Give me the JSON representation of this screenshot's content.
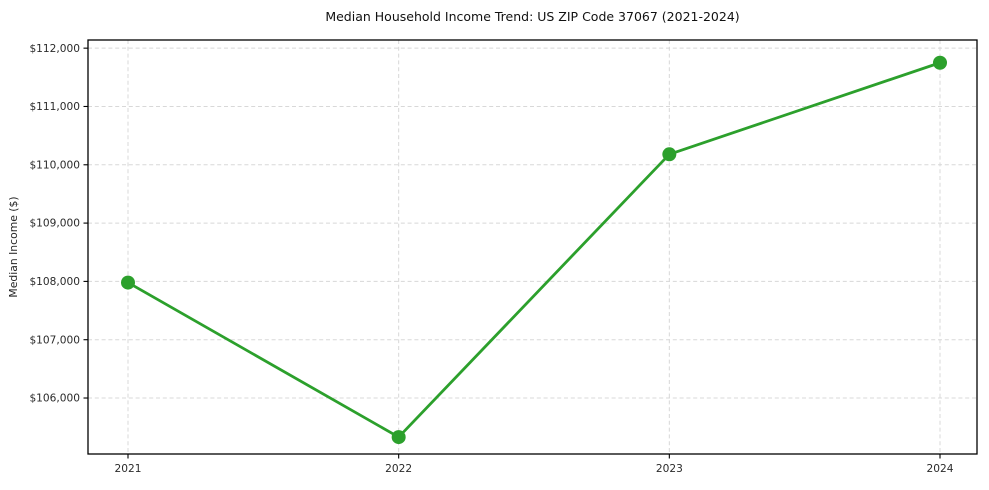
{
  "chart_data": {
    "type": "line",
    "title": "Median Household Income Trend: US ZIP Code 37067 (2021-2024)",
    "xlabel": "",
    "ylabel": "Median Income ($)",
    "categories": [
      "2021",
      "2022",
      "2023",
      "2024"
    ],
    "series": [
      {
        "name": "median-household-income",
        "values": [
          107980,
          105330,
          110180,
          111750
        ],
        "color": "#2ca02c",
        "marker": "circle",
        "line_width": 2.8,
        "marker_radius": 7
      }
    ],
    "yticks": [
      {
        "value": 106000,
        "label": "$106,000"
      },
      {
        "value": 107000,
        "label": "$107,000"
      },
      {
        "value": 108000,
        "label": "$108,000"
      },
      {
        "value": 109000,
        "label": "$109,000"
      },
      {
        "value": 110000,
        "label": "$110,000"
      },
      {
        "value": 111000,
        "label": "$111,000"
      },
      {
        "value": 112000,
        "label": "$112,000"
      }
    ],
    "ylim": [
      105040,
      112140
    ],
    "grid": {
      "show": true,
      "style": "dashed",
      "color": "#d8d8d8"
    },
    "legend": "none",
    "spine_color": "#000000",
    "background": "#ffffff"
  }
}
